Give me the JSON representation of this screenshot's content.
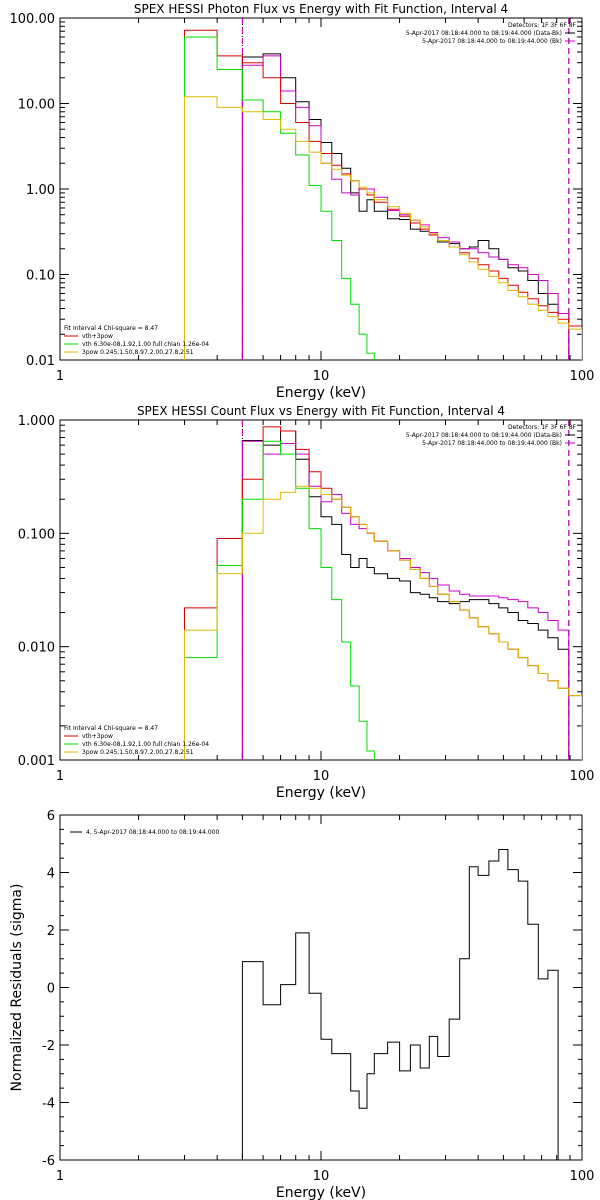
{
  "chart_data": [
    {
      "type": "line",
      "title": "SPEX HESSI Photon Flux vs Energy with Fit Function, Interval 4",
      "xlabel": "Energy (keV)",
      "ylabel": "",
      "xscale": "log",
      "yscale": "log",
      "xlim": [
        1,
        100
      ],
      "ylim": [
        0.01,
        100
      ],
      "x_ticks": [
        "1",
        "10",
        "100"
      ],
      "y_ticks": [
        "0.01",
        "0.10",
        "1.00",
        "10.00",
        "100.00"
      ],
      "detectors_label": "Detectors: 1F 3F 6F 8F",
      "legend_top": [
        {
          "text": "5-Apr-2017 08:18:44.000 to 08:19:44.000 (Data-Bk)",
          "color": "#000000"
        },
        {
          "text": "5-Apr-2017 08:18:44.000 to 08:19:44.000 (Bk)",
          "color": "#cc00cc"
        }
      ],
      "fit_header": "Fit Interval  4   Chi-square = 8.47",
      "legend_bottom": [
        {
          "text": "vth+3pow",
          "color": "#dd0000"
        },
        {
          "text": "vth 6.30e-08,1.92,1.00  full chian 1.26e-04",
          "color": "#00dd00"
        },
        {
          "text": "3pow 0.245,1.50,8.97,2.00,27.8,2.51",
          "color": "#ddbb00"
        }
      ],
      "vlines": [
        {
          "x": 5,
          "style": "dotted",
          "color": "#000000"
        },
        {
          "x": 5,
          "style": "dashed",
          "color": "#cc00cc"
        },
        {
          "x": 89,
          "style": "dashed",
          "color": "#000000"
        },
        {
          "x": 89,
          "style": "dashed",
          "color": "#cc00cc"
        }
      ],
      "series": [
        {
          "name": "Data-Bk",
          "color": "#000000",
          "edges": [
            5.0,
            6.0,
            7.0,
            8.0,
            9.0,
            10.0,
            11.0,
            12.0,
            13.0,
            14.0,
            15.0,
            16.0,
            18.0,
            20.0,
            22.0,
            24.0,
            26.0,
            28.0,
            31.0,
            34.0,
            37.0,
            40.0,
            44.0,
            48.0,
            52.0,
            57.0,
            62.0,
            68.0,
            74.0,
            81.0,
            89.0
          ],
          "values": [
            35.0,
            38.0,
            20.0,
            10.5,
            6.5,
            3.5,
            2.6,
            1.75,
            0.9,
            0.55,
            0.75,
            0.55,
            0.45,
            0.44,
            0.34,
            0.32,
            0.29,
            0.24,
            0.23,
            0.2,
            0.21,
            0.25,
            0.2,
            0.15,
            0.12,
            0.11,
            0.085,
            0.06,
            0.045,
            0.035
          ]
        },
        {
          "name": "Bk",
          "color": "#cc00cc",
          "edges": [
            5.0,
            6.0,
            7.0,
            8.0,
            9.0,
            10.0,
            11.0,
            12.0,
            13.0,
            14.0,
            15.0,
            16.0,
            18.0,
            20.0,
            22.0,
            24.0,
            26.0,
            28.0,
            31.0,
            34.0,
            37.0,
            40.0,
            44.0,
            48.0,
            52.0,
            57.0,
            62.0,
            68.0,
            74.0,
            81.0,
            89.0
          ],
          "values": [
            28.0,
            36.0,
            14.0,
            9.0,
            5.5,
            2.0,
            1.3,
            0.9,
            0.85,
            1.0,
            1.0,
            0.8,
            0.56,
            0.5,
            0.43,
            0.38,
            0.31,
            0.27,
            0.24,
            0.2,
            0.2,
            0.18,
            0.16,
            0.15,
            0.13,
            0.12,
            0.1,
            0.085,
            0.06,
            0.035
          ]
        },
        {
          "name": "vth+3pow",
          "color": "#dd0000",
          "edges": [
            3.0,
            4.0,
            5.0,
            6.0,
            7.0,
            8.0,
            9.0,
            10.0,
            11.0,
            12.0,
            13.0,
            14.0,
            15.0,
            16.0,
            18.0,
            20.0,
            22.0,
            24.0,
            26.0,
            28.0,
            31.0,
            34.0,
            37.0,
            40.0,
            44.0,
            48.0,
            52.0,
            57.0,
            62.0,
            68.0,
            74.0,
            81.0,
            89.0,
            100.0
          ],
          "values": [
            72.0,
            36.0,
            30.0,
            20.0,
            10.0,
            6.0,
            3.6,
            2.6,
            1.9,
            1.5,
            1.25,
            1.0,
            0.85,
            0.7,
            0.58,
            0.48,
            0.4,
            0.34,
            0.29,
            0.25,
            0.21,
            0.18,
            0.155,
            0.13,
            0.11,
            0.09,
            0.075,
            0.062,
            0.052,
            0.043,
            0.036,
            0.03,
            0.025
          ]
        },
        {
          "name": "vth",
          "color": "#00dd00",
          "edges": [
            3.0,
            4.0,
            5.0,
            6.0,
            7.0,
            8.0,
            9.0,
            10.0,
            11.0,
            12.0,
            13.0,
            14.0,
            15.0,
            16.0
          ],
          "values": [
            60.0,
            25.0,
            11.0,
            8.0,
            4.5,
            2.5,
            1.1,
            0.55,
            0.25,
            0.09,
            0.045,
            0.02,
            0.012
          ]
        },
        {
          "name": "3pow",
          "color": "#ddbb00",
          "edges": [
            3.0,
            4.0,
            5.0,
            6.0,
            7.0,
            8.0,
            9.0,
            10.0,
            11.0,
            12.0,
            13.0,
            14.0,
            15.0,
            16.0,
            18.0,
            20.0,
            22.0,
            24.0,
            26.0,
            28.0,
            31.0,
            34.0,
            37.0,
            40.0,
            44.0,
            48.0,
            52.0,
            57.0,
            62.0,
            68.0,
            74.0,
            81.0,
            89.0,
            100.0
          ],
          "values": [
            12.0,
            9.0,
            8.0,
            6.5,
            5.0,
            3.6,
            2.7,
            2.0,
            1.7,
            1.45,
            1.25,
            1.05,
            0.9,
            0.75,
            0.62,
            0.52,
            0.43,
            0.36,
            0.3,
            0.25,
            0.21,
            0.17,
            0.14,
            0.115,
            0.095,
            0.08,
            0.065,
            0.055,
            0.045,
            0.038,
            0.032,
            0.027,
            0.023
          ]
        }
      ]
    },
    {
      "type": "line",
      "title": "SPEX HESSI Count Flux vs Energy with Fit Function, Interval 4",
      "xlabel": "Energy (keV)",
      "ylabel": "",
      "xscale": "log",
      "yscale": "log",
      "xlim": [
        1,
        100
      ],
      "ylim": [
        0.001,
        1
      ],
      "x_ticks": [
        "1",
        "10",
        "100"
      ],
      "y_ticks": [
        "0.001",
        "0.010",
        "0.100",
        "1.000"
      ],
      "detectors_label": "Detectors: 1F 3F 6F 8F",
      "legend_top": [
        {
          "text": "5-Apr-2017 08:18:44.000 to 08:19:44.000 (Data-Bk)",
          "color": "#000000"
        },
        {
          "text": "5-Apr-2017 08:18:44.000 to 08:19:44.000 (Bk)",
          "color": "#cc00cc"
        }
      ],
      "fit_header": "Fit Interval  4   Chi-square = 8.47",
      "legend_bottom": [
        {
          "text": "vth+3pow",
          "color": "#dd0000"
        },
        {
          "text": "vth 6.30e-08,1.92,1.00  full chian 1.26e-04",
          "color": "#00dd00"
        },
        {
          "text": "3pow 0.245,1.50,8.97,2.00,27.8,2.51",
          "color": "#ddbb00"
        }
      ],
      "vlines": [
        {
          "x": 5,
          "style": "dotted",
          "color": "#000000"
        },
        {
          "x": 5,
          "style": "dashed",
          "color": "#cc00cc"
        },
        {
          "x": 89,
          "style": "dashed",
          "color": "#000000"
        },
        {
          "x": 89,
          "style": "dashed",
          "color": "#cc00cc"
        }
      ],
      "series": [
        {
          "name": "Data-Bk",
          "color": "#000000",
          "edges": [
            5.0,
            6.0,
            7.0,
            8.0,
            9.0,
            10.0,
            11.0,
            12.0,
            13.0,
            14.0,
            15.0,
            16.0,
            18.0,
            20.0,
            22.0,
            24.0,
            26.0,
            28.0,
            31.0,
            34.0,
            37.0,
            40.0,
            44.0,
            48.0,
            52.0,
            57.0,
            62.0,
            68.0,
            74.0,
            81.0,
            89.0
          ],
          "values": [
            0.66,
            0.6,
            0.8,
            0.45,
            0.21,
            0.14,
            0.12,
            0.065,
            0.05,
            0.06,
            0.05,
            0.044,
            0.04,
            0.038,
            0.03,
            0.029,
            0.027,
            0.025,
            0.024,
            0.025,
            0.026,
            0.026,
            0.024,
            0.022,
            0.02,
            0.017,
            0.016,
            0.014,
            0.012,
            0.0095
          ]
        },
        {
          "name": "Bk",
          "color": "#cc00cc",
          "edges": [
            5.0,
            6.0,
            7.0,
            8.0,
            9.0,
            10.0,
            11.0,
            12.0,
            13.0,
            14.0,
            15.0,
            16.0,
            18.0,
            20.0,
            22.0,
            24.0,
            26.0,
            28.0,
            31.0,
            34.0,
            37.0,
            40.0,
            44.0,
            48.0,
            52.0,
            57.0,
            62.0,
            68.0,
            74.0,
            81.0,
            89.0
          ],
          "values": [
            0.65,
            0.5,
            0.62,
            0.5,
            0.26,
            0.19,
            0.22,
            0.15,
            0.12,
            0.11,
            0.1,
            0.085,
            0.07,
            0.06,
            0.05,
            0.045,
            0.04,
            0.035,
            0.031,
            0.029,
            0.028,
            0.028,
            0.028,
            0.027,
            0.026,
            0.025,
            0.022,
            0.02,
            0.017,
            0.014
          ]
        },
        {
          "name": "vth+3pow",
          "color": "#dd0000",
          "edges": [
            3.0,
            4.0,
            5.0,
            6.0,
            7.0,
            8.0,
            9.0,
            10.0,
            11.0,
            12.0,
            13.0,
            14.0,
            15.0,
            16.0,
            18.0,
            20.0,
            22.0,
            24.0,
            26.0,
            28.0,
            31.0,
            34.0,
            37.0,
            40.0,
            44.0,
            48.0,
            52.0,
            57.0,
            62.0,
            68.0,
            74.0,
            81.0,
            89.0,
            100.0
          ],
          "values": [
            0.022,
            0.09,
            0.3,
            0.87,
            0.8,
            0.55,
            0.35,
            0.25,
            0.2,
            0.17,
            0.14,
            0.12,
            0.1,
            0.085,
            0.07,
            0.058,
            0.048,
            0.04,
            0.034,
            0.029,
            0.025,
            0.021,
            0.018,
            0.015,
            0.013,
            0.011,
            0.0095,
            0.008,
            0.0068,
            0.0058,
            0.005,
            0.0043,
            0.0037
          ]
        },
        {
          "name": "vth",
          "color": "#00dd00",
          "edges": [
            3.0,
            4.0,
            5.0,
            6.0,
            7.0,
            8.0,
            9.0,
            10.0,
            11.0,
            12.0,
            13.0,
            14.0,
            15.0,
            16.0
          ],
          "values": [
            0.008,
            0.052,
            0.2,
            0.65,
            0.5,
            0.25,
            0.11,
            0.05,
            0.026,
            0.011,
            0.0045,
            0.0022,
            0.0012
          ]
        },
        {
          "name": "3pow",
          "color": "#ddbb00",
          "edges": [
            3.0,
            4.0,
            5.0,
            6.0,
            7.0,
            8.0,
            9.0,
            10.0,
            11.0,
            12.0,
            13.0,
            14.0,
            15.0,
            16.0,
            18.0,
            20.0,
            22.0,
            24.0,
            26.0,
            28.0,
            31.0,
            34.0,
            37.0,
            40.0,
            44.0,
            48.0,
            52.0,
            57.0,
            62.0,
            68.0,
            74.0,
            81.0,
            89.0,
            100.0
          ],
          "values": [
            0.014,
            0.044,
            0.1,
            0.2,
            0.23,
            0.26,
            0.25,
            0.22,
            0.2,
            0.17,
            0.14,
            0.12,
            0.1,
            0.085,
            0.07,
            0.058,
            0.048,
            0.04,
            0.034,
            0.029,
            0.025,
            0.021,
            0.018,
            0.015,
            0.013,
            0.011,
            0.0095,
            0.008,
            0.0068,
            0.0058,
            0.005,
            0.0043,
            0.0037
          ]
        }
      ]
    },
    {
      "type": "line",
      "title": "",
      "xlabel": "Energy (keV)",
      "ylabel": "Normalized Residuals (sigma)",
      "xscale": "log",
      "yscale": "linear",
      "xlim": [
        1,
        100
      ],
      "ylim": [
        -6,
        6
      ],
      "x_ticks": [
        "1",
        "10",
        "100"
      ],
      "y_ticks": [
        "-6",
        "-4",
        "-2",
        "0",
        "2",
        "4",
        "6"
      ],
      "legend_top_left": "4,  5-Apr-2017 08:18:44.000 to 08:19:44.000",
      "series": [
        {
          "name": "",
          "color": "#000000",
          "edges": [
            5.0,
            6.0,
            7.0,
            8.0,
            9.0,
            10.0,
            11.0,
            12.0,
            13.0,
            14.0,
            15.0,
            16.0,
            18.0,
            20.0,
            22.0,
            24.0,
            26.0,
            28.0,
            31.0,
            34.0,
            37.0,
            40.0,
            44.0,
            48.0,
            52.0,
            57.0,
            62.0,
            68.0,
            74.0,
            81.0,
            89.0
          ],
          "values": [
            0.9,
            -0.6,
            0.1,
            1.9,
            -0.2,
            -1.8,
            -2.3,
            -2.3,
            -3.6,
            -4.2,
            -3.0,
            -2.3,
            -1.9,
            -2.9,
            -2.0,
            -2.8,
            -1.7,
            -2.4,
            -1.1,
            1.0,
            4.2,
            3.9,
            4.4,
            4.8,
            4.1,
            3.7,
            2.2,
            0.3,
            0.6,
            -6.0
          ]
        }
      ]
    }
  ]
}
